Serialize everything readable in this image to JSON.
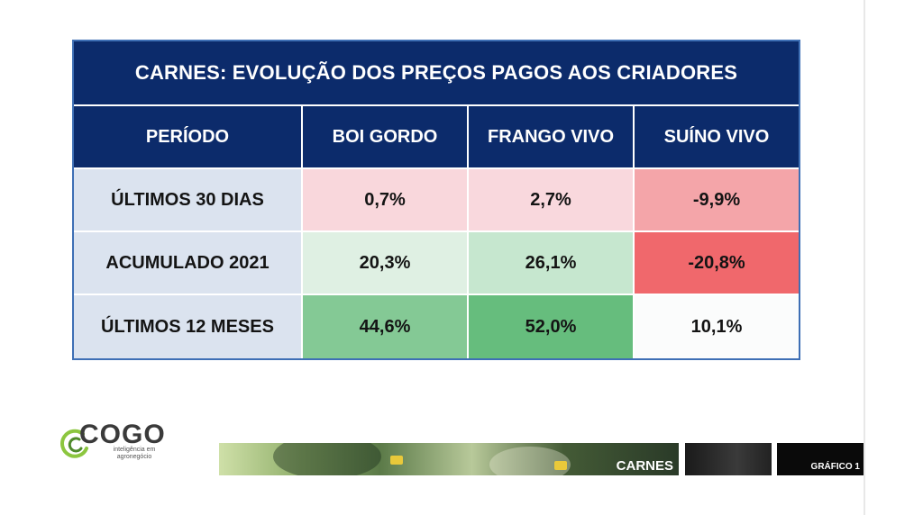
{
  "table": {
    "title": "CARNES: EVOLUÇÃO DOS PREÇOS PAGOS AOS CRIADORES",
    "headers": [
      "PERÍODO",
      "BOI GORDO",
      "FRANGO VIVO",
      "SUÍNO VIVO"
    ],
    "rows": [
      {
        "label": "ÚLTIMOS 30 DIAS",
        "values": [
          "0,7%",
          "2,7%",
          "-9,9%"
        ]
      },
      {
        "label": "ACUMULADO 2021",
        "values": [
          "20,3%",
          "26,1%",
          "-20,8%"
        ]
      },
      {
        "label": "ÚLTIMOS 12 MESES",
        "values": [
          "44,6%",
          "52,0%",
          "10,1%"
        ]
      }
    ],
    "cell_colors": [
      [
        "#f9d7dc",
        "#f9d8dd",
        "#f4a5a9"
      ],
      [
        "#dff0e3",
        "#c6e7cf",
        "#f0686c"
      ],
      [
        "#84c995",
        "#66bd7d",
        "#fbfcfc"
      ]
    ],
    "header_color": "#0c2b6b",
    "label_color": "#dbe3ef"
  },
  "logo": {
    "wordmark": "COGO",
    "tagline": "inteligência em agronegócio",
    "icon": "cogo-swirl-icon"
  },
  "banner": {
    "section_label": "CARNES",
    "chart_label": "GRÁFICO 1"
  }
}
